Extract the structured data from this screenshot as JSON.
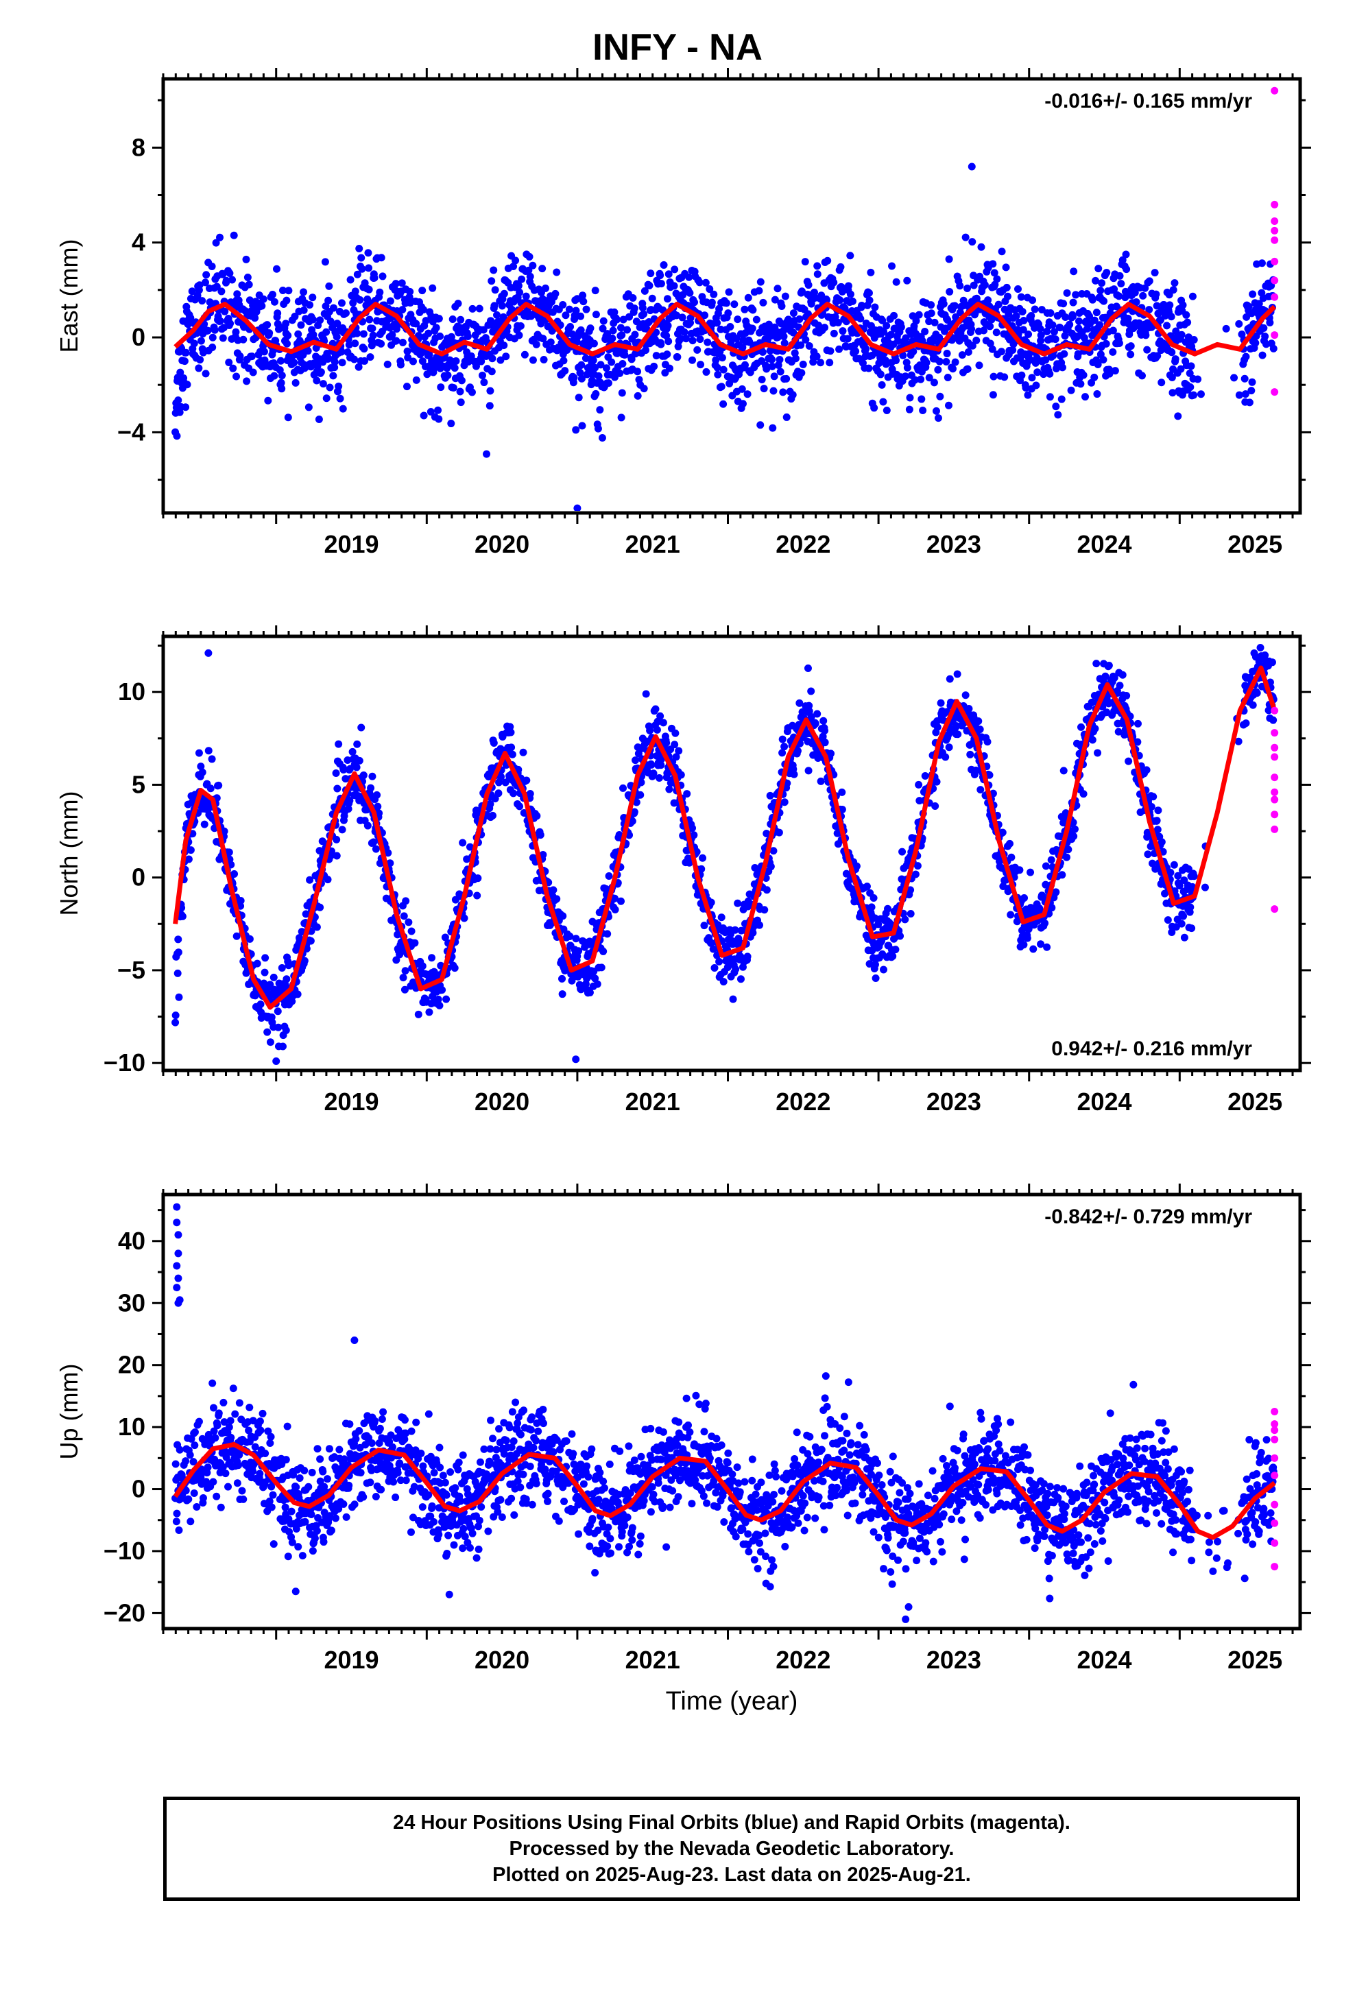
{
  "title": "INFY - NA",
  "footer": {
    "line1": "24 Hour Positions Using Final Orbits (blue) and Rapid Orbits (magenta).",
    "line2": "Processed by the Nevada Geodetic Laboratory.",
    "line3": "Plotted on 2025-Aug-23. Last data on 2025-Aug-21."
  },
  "colors": {
    "final_orbits": "#0000ff",
    "rapid_orbits": "#ff00ff",
    "fit": "#ff0000",
    "axes": "#000000"
  },
  "chart_data": [
    {
      "type": "scatter",
      "panel": "east",
      "ylabel": "East (mm)",
      "xlabel": "",
      "rate_label": "-0.016+/- 0.165 mm/yr",
      "rate_position": "top-right",
      "xlim": [
        2018.25,
        2025.8
      ],
      "ylim": [
        -7.4,
        10.9
      ],
      "xticks": [
        2019,
        2020,
        2021,
        2022,
        2023,
        2024,
        2025
      ],
      "yticks": [
        -4,
        0,
        4,
        8
      ],
      "grid": false,
      "fit": {
        "name": "",
        "x": [
          2018.33,
          2018.45,
          2018.55,
          2018.66,
          2018.8,
          2018.95,
          2019.1,
          2019.25,
          2019.4,
          2019.55,
          2019.66,
          2019.8,
          2019.95,
          2020.1,
          2020.25,
          2020.4,
          2020.55,
          2020.66,
          2020.8,
          2020.95,
          2021.1,
          2021.25,
          2021.4,
          2021.55,
          2021.66,
          2021.8,
          2021.95,
          2022.1,
          2022.25,
          2022.4,
          2022.55,
          2022.66,
          2022.8,
          2022.95,
          2023.1,
          2023.25,
          2023.4,
          2023.55,
          2023.66,
          2023.8,
          2023.95,
          2024.1,
          2024.25,
          2024.4,
          2024.55,
          2024.66,
          2024.8,
          2024.95,
          2025.1,
          2025.25,
          2025.4,
          2025.55,
          2025.63
        ],
        "y": [
          -0.4,
          0.3,
          1.1,
          1.4,
          0.7,
          -0.3,
          -0.6,
          -0.2,
          -0.5,
          0.8,
          1.4,
          0.9,
          -0.3,
          -0.7,
          -0.2,
          -0.5,
          0.8,
          1.4,
          0.9,
          -0.3,
          -0.7,
          -0.3,
          -0.5,
          0.8,
          1.4,
          0.9,
          -0.3,
          -0.7,
          -0.3,
          -0.5,
          0.8,
          1.4,
          0.9,
          -0.3,
          -0.7,
          -0.3,
          -0.5,
          0.8,
          1.4,
          0.9,
          -0.3,
          -0.7,
          -0.3,
          -0.5,
          0.8,
          1.4,
          0.9,
          -0.3,
          -0.7,
          -0.3,
          -0.5,
          0.8,
          1.3
        ]
      },
      "rapid": {
        "x": [
          2025.63,
          2025.63,
          2025.63,
          2025.63,
          2025.63,
          2025.63,
          2025.63,
          2025.63,
          2025.63,
          2025.63
        ],
        "y": [
          10.4,
          5.6,
          4.9,
          4.5,
          4.1,
          3.2,
          2.4,
          1.7,
          0.1,
          -2.3
        ]
      },
      "outliers": {
        "x": [
          2018.72,
          2023.62,
          2020.99,
          2021.0
        ],
        "y": [
          4.3,
          7.2,
          -3.9,
          -7.2
        ]
      },
      "trend": {
        "nominal_offset": 0.0,
        "rate": -0.016
      },
      "seasonal": {
        "annual": 1.0,
        "annual_phase": 0.62,
        "semiannual": 0.45,
        "semiannual_phase": 0.3
      },
      "scatter_sd": 1.1
    },
    {
      "type": "scatter",
      "panel": "north",
      "ylabel": "North (mm)",
      "xlabel": "",
      "rate_label": "0.942+/- 0.216 mm/yr",
      "rate_position": "bottom-right",
      "xlim": [
        2018.25,
        2025.8
      ],
      "ylim": [
        -10.4,
        13.0
      ],
      "xticks": [
        2019,
        2020,
        2021,
        2022,
        2023,
        2024,
        2025
      ],
      "yticks": [
        -10,
        -5,
        0,
        5,
        10
      ],
      "grid": false,
      "fit": {
        "name": "",
        "x": [
          2018.33,
          2018.4,
          2018.5,
          2018.58,
          2018.7,
          2018.85,
          2018.96,
          2019.1,
          2019.25,
          2019.4,
          2019.52,
          2019.65,
          2019.8,
          2019.96,
          2020.1,
          2020.25,
          2020.4,
          2020.52,
          2020.65,
          2020.8,
          2020.96,
          2021.1,
          2021.25,
          2021.4,
          2021.52,
          2021.65,
          2021.8,
          2021.96,
          2022.1,
          2022.25,
          2022.4,
          2022.52,
          2022.65,
          2022.8,
          2022.96,
          2023.1,
          2023.25,
          2023.4,
          2023.52,
          2023.65,
          2023.8,
          2023.96,
          2024.1,
          2024.25,
          2024.4,
          2024.52,
          2024.65,
          2024.8,
          2024.96,
          2025.1,
          2025.25,
          2025.4,
          2025.54,
          2025.63
        ],
        "y": [
          -2.5,
          2.0,
          4.7,
          4.2,
          -0.5,
          -5.5,
          -7.0,
          -6.0,
          -1.5,
          3.5,
          5.6,
          3.5,
          -2.0,
          -6.0,
          -5.5,
          -1.0,
          4.5,
          6.7,
          4.5,
          -1.0,
          -5.0,
          -4.5,
          0.0,
          5.5,
          7.6,
          5.5,
          0.0,
          -4.2,
          -3.8,
          0.8,
          6.5,
          8.5,
          6.5,
          1.0,
          -3.2,
          -3.0,
          1.5,
          7.3,
          9.5,
          7.5,
          2.0,
          -2.4,
          -2.0,
          2.5,
          8.2,
          10.4,
          8.5,
          3.0,
          -1.4,
          -1.0,
          3.5,
          9.0,
          11.3,
          9.0
        ]
      },
      "rapid": {
        "x": [
          2025.63,
          2025.63,
          2025.63,
          2025.63,
          2025.63,
          2025.63,
          2025.63,
          2025.63,
          2025.63,
          2025.63
        ],
        "y": [
          9.0,
          7.8,
          7.0,
          6.5,
          5.4,
          4.6,
          4.2,
          3.4,
          2.6,
          -1.7
        ]
      },
      "outliers": {
        "x": [
          2018.55,
          2020.99,
          2019.0
        ],
        "y": [
          12.1,
          -9.8,
          -9.9
        ]
      },
      "trend": {
        "nominal_offset": 0.0,
        "rate": 0.942
      },
      "seasonal": {
        "annual": 6.7,
        "annual_phase": 0.52,
        "semiannual": 0.5,
        "semiannual_phase": 0.2
      },
      "scatter_sd": 0.9
    },
    {
      "type": "scatter",
      "panel": "up",
      "ylabel": "Up (mm)",
      "xlabel": "Time (year)",
      "rate_label": "-0.842+/- 0.729 mm/yr",
      "rate_position": "top-right",
      "xlim": [
        2018.25,
        2025.8
      ],
      "ylim": [
        -22.5,
        47.5
      ],
      "xticks": [
        2019,
        2020,
        2021,
        2022,
        2023,
        2024,
        2025
      ],
      "yticks": [
        -20,
        -10,
        0,
        10,
        20,
        30,
        40
      ],
      "grid": false,
      "fit": {
        "name": "",
        "x": [
          2018.33,
          2018.45,
          2018.58,
          2018.72,
          2018.85,
          2019.0,
          2019.12,
          2019.22,
          2019.35,
          2019.5,
          2019.68,
          2019.85,
          2020.0,
          2020.12,
          2020.22,
          2020.35,
          2020.5,
          2020.68,
          2020.85,
          2021.0,
          2021.12,
          2021.22,
          2021.35,
          2021.5,
          2021.68,
          2021.85,
          2022.0,
          2022.12,
          2022.22,
          2022.35,
          2022.5,
          2022.68,
          2022.85,
          2023.0,
          2023.12,
          2023.22,
          2023.35,
          2023.5,
          2023.68,
          2023.85,
          2024.0,
          2024.12,
          2024.22,
          2024.35,
          2024.5,
          2024.68,
          2024.85,
          2025.0,
          2025.12,
          2025.22,
          2025.35,
          2025.5,
          2025.63
        ],
        "y": [
          -1.2,
          3.0,
          6.5,
          7.2,
          5.5,
          1.0,
          -2.2,
          -2.8,
          -1.0,
          3.5,
          6.3,
          5.5,
          1.0,
          -2.8,
          -3.5,
          -2.0,
          2.5,
          5.6,
          5.0,
          0.5,
          -3.5,
          -4.3,
          -2.5,
          2.0,
          5.0,
          4.5,
          -0.2,
          -4.2,
          -5.0,
          -3.5,
          1.2,
          4.2,
          3.5,
          -1.0,
          -5.0,
          -5.8,
          -4.0,
          0.5,
          3.3,
          2.8,
          -1.8,
          -5.8,
          -6.8,
          -5.0,
          -0.5,
          2.5,
          2.0,
          -2.5,
          -6.8,
          -7.8,
          -6.0,
          -1.5,
          1.0
        ]
      },
      "rapid": {
        "x": [
          2025.63,
          2025.63,
          2025.63,
          2025.63,
          2025.63,
          2025.63,
          2025.63,
          2025.63,
          2025.63,
          2025.63
        ],
        "y": [
          12.5,
          10.5,
          9.5,
          8.0,
          5.0,
          2.2,
          -2.5,
          -5.5,
          -8.7,
          -12.5
        ]
      },
      "outliers": {
        "x": [
          2018.34,
          2018.34,
          2018.35,
          2018.35,
          2018.34,
          2018.35,
          2018.34,
          2018.36,
          2018.35,
          2019.52,
          2023.18,
          2023.2,
          2020.15,
          2019.13
        ],
        "y": [
          45.5,
          43.0,
          41.0,
          38.0,
          36.0,
          34.0,
          32.5,
          30.5,
          30.0,
          24.0,
          -21.0,
          -19.0,
          -17.0,
          -16.5
        ]
      },
      "trend": {
        "nominal_offset": 0.0,
        "rate": -0.842
      },
      "seasonal": {
        "annual": 4.8,
        "annual_phase": 0.7,
        "semiannual": 0.6,
        "semiannual_phase": 0.4
      },
      "scatter_sd": 3.8
    }
  ]
}
